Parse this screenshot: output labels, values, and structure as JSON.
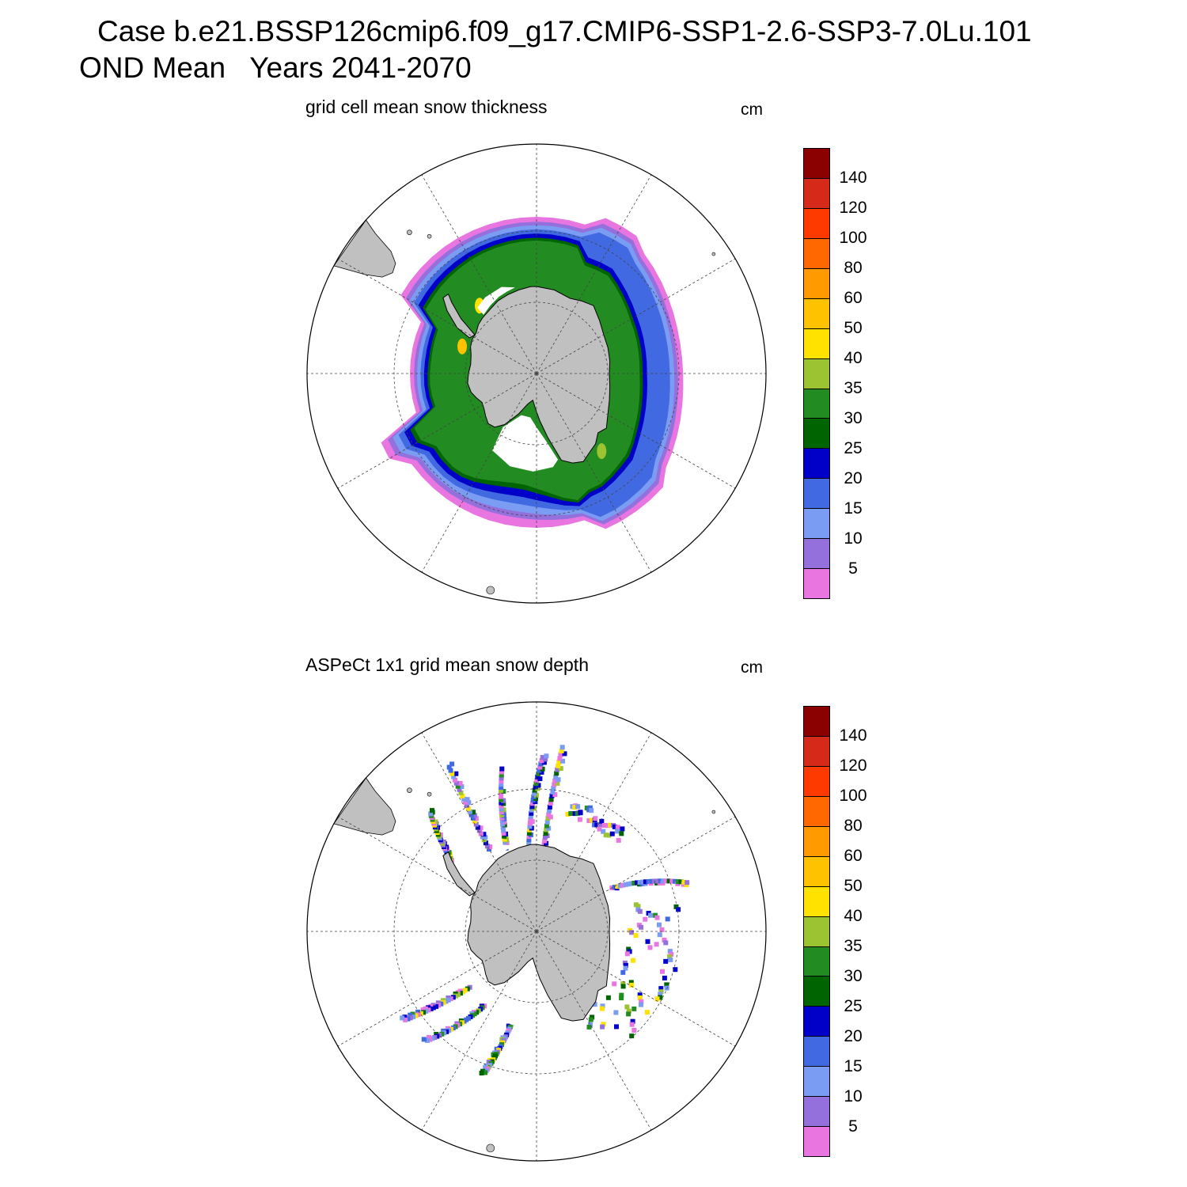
{
  "header": {
    "title": "Case b.e21.BSSP126cmip6.f09_g17.CMIP6-SSP1-2.6-SSP3-7.0Lu.101",
    "subtitle": "OND Mean   Years 2041-2070"
  },
  "legend_colors": [
    "#8b0000",
    "#d52a1a",
    "#ff3a00",
    "#ff6800",
    "#ff9a00",
    "#ffc200",
    "#ffe200",
    "#9cc332",
    "#228b22",
    "#006400",
    "#0000c8",
    "#4169e1",
    "#7a9cf2",
    "#9370db",
    "#e875e0"
  ],
  "legend_labels": [
    "140",
    "120",
    "100",
    "80",
    "60",
    "50",
    "40",
    "35",
    "30",
    "25",
    "20",
    "15",
    "10",
    "5"
  ],
  "panels": [
    {
      "title": "grid cell mean snow thickness",
      "units": "cm",
      "field_style": "continuous"
    },
    {
      "title": "ASPeCt 1x1 grid mean snow depth",
      "units": "cm",
      "field_style": "ship-tracks"
    }
  ],
  "map": {
    "projection": "south-polar-stereographic",
    "land_color": "#c0c0c0",
    "ice_shelf_color": "#ffffff",
    "graticule": "dashed"
  }
}
